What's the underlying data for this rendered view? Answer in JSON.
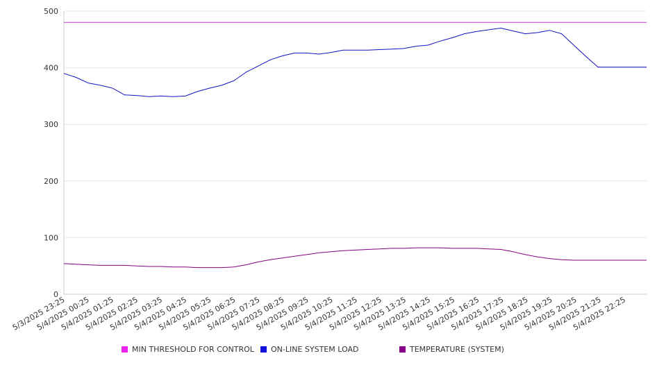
{
  "chart_data": {
    "type": "line",
    "ylim": [
      0,
      500
    ],
    "y_ticks": [
      0,
      100,
      200,
      300,
      400,
      500
    ],
    "grid": true,
    "legend_position": "bottom",
    "x_tick_labels": [
      "5/3/2025 23:25",
      "5/4/2025 00:25",
      "5/4/2025 01:25",
      "5/4/2025 02:25",
      "5/4/2025 03:25",
      "5/4/2025 04:25",
      "5/4/2025 05:25",
      "5/4/2025 06:25",
      "5/4/2025 07:25",
      "5/4/2025 08:25",
      "5/4/2025 09:25",
      "5/4/2025 10:25",
      "5/4/2025 11:25",
      "5/4/2025 12:25",
      "5/4/2025 13:25",
      "5/4/2025 14:25",
      "5/4/2025 15:25",
      "5/4/2025 16:25",
      "5/4/2025 17:25",
      "5/4/2025 18:25",
      "5/4/2025 19:25",
      "5/4/2025 20:25",
      "5/4/2025 21:25",
      "5/4/2025 22:25"
    ],
    "x_hours": [
      0,
      0.5,
      1,
      1.5,
      2,
      2.5,
      3,
      3.5,
      4,
      4.5,
      5,
      5.5,
      6,
      6.5,
      7,
      7.5,
      8,
      8.5,
      9,
      9.5,
      10,
      10.5,
      11,
      11.5,
      12,
      12.5,
      13,
      13.5,
      14,
      14.5,
      15,
      15.5,
      16,
      16.5,
      17,
      17.5,
      18,
      18.5,
      19,
      19.5,
      20,
      20.5,
      21,
      21.5,
      22,
      22.5,
      23,
      23.5,
      24
    ],
    "x_range_hours": [
      0,
      24
    ],
    "series": [
      {
        "name": "MIN THRESHOLD FOR CONTROL",
        "color": "#cc33cc",
        "values": [
          480,
          480,
          480,
          480,
          480,
          480,
          480,
          480,
          480,
          480,
          480,
          480,
          480,
          480,
          480,
          480,
          480,
          480,
          480,
          480,
          480,
          480,
          480,
          480,
          480,
          480,
          480,
          480,
          480,
          480,
          480,
          480,
          480,
          480,
          480,
          480,
          480,
          480,
          480,
          480,
          480,
          480,
          480,
          480,
          480,
          480,
          480,
          480,
          480
        ]
      },
      {
        "name": "ON-LINE SYSTEM LOAD",
        "color": "#1010c0",
        "values": [
          390,
          383,
          373,
          369,
          364,
          352,
          351,
          349,
          350,
          349,
          350,
          358,
          364,
          369,
          377,
          392,
          403,
          414,
          421,
          426,
          426,
          424,
          427,
          431,
          431,
          431,
          432,
          433,
          434,
          438,
          440,
          447,
          453,
          460,
          464,
          467,
          470,
          465,
          460,
          462,
          466,
          460,
          440,
          420,
          401,
          401,
          401,
          401,
          401
        ]
      },
      {
        "name": "TEMPERATURE (SYSTEM)",
        "color": "#800080",
        "values": [
          54,
          53,
          52,
          51,
          51,
          51,
          50,
          49,
          49,
          48,
          48,
          47,
          47,
          47,
          48,
          52,
          57,
          61,
          64,
          67,
          70,
          73,
          75,
          77,
          78,
          79,
          80,
          81,
          81,
          82,
          82,
          82,
          81,
          81,
          81,
          80,
          79,
          75,
          70,
          66,
          63,
          61,
          60,
          60,
          60,
          60,
          60,
          60,
          60
        ]
      }
    ]
  }
}
